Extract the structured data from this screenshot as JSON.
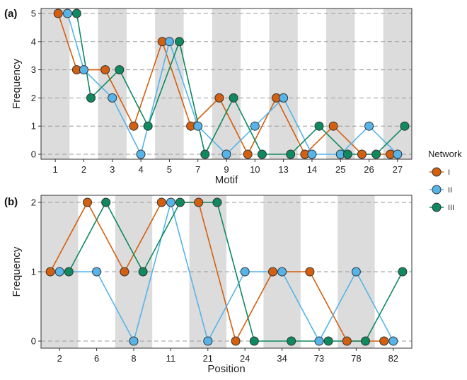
{
  "legend": {
    "title": "Network",
    "items": [
      {
        "label": "I",
        "color": "#D45F0E"
      },
      {
        "label": "II",
        "color": "#56B4E9"
      },
      {
        "label": "III",
        "color": "#0F8A5F"
      }
    ]
  },
  "chart_data": [
    {
      "panel_label": "(a)",
      "type": "line",
      "xlabel": "Motif",
      "ylabel": "Frequency",
      "categories": [
        "1",
        "2",
        "3",
        "4",
        "5",
        "7",
        "9",
        "10",
        "13",
        "14",
        "25",
        "26",
        "27"
      ],
      "ylim": [
        0,
        5
      ],
      "yticks": [
        0,
        1,
        2,
        3,
        4,
        5
      ],
      "grid": "dashed horizontal",
      "band_shading": "alternating grey/white per category",
      "series": [
        {
          "name": "I",
          "color": "#D45F0E",
          "x": [
            0.6,
            1.25,
            2.25,
            3.25,
            4.25,
            5.25,
            6.25,
            7.25,
            8.25,
            9.25,
            10.25,
            11.25,
            12.25
          ],
          "values": [
            5,
            3,
            3,
            1,
            4,
            1,
            2,
            0,
            2,
            0,
            1,
            0,
            0
          ]
        },
        {
          "name": "II",
          "color": "#56B4E9",
          "x": [
            0.93,
            1.5,
            2.5,
            3.5,
            4.5,
            5.5,
            6.5,
            7.5,
            8.5,
            9.5,
            10.5,
            11.5,
            12.5
          ],
          "values": [
            5,
            3,
            2,
            0,
            4,
            1,
            0,
            1,
            2,
            0,
            0,
            1,
            0
          ]
        },
        {
          "name": "III",
          "color": "#0F8A5F",
          "x": [
            1.25,
            1.75,
            2.75,
            3.75,
            4.85,
            5.75,
            6.75,
            7.75,
            8.75,
            9.75,
            10.75,
            11.75,
            12.75
          ],
          "values": [
            5,
            2,
            3,
            1,
            4,
            0,
            2,
            0,
            0,
            1,
            0,
            0,
            1
          ]
        }
      ]
    },
    {
      "panel_label": "(b)",
      "type": "line",
      "xlabel": "Position",
      "ylabel": "Frequency",
      "categories": [
        "2",
        "6",
        "8",
        "11",
        "21",
        "24",
        "34",
        "73",
        "78",
        "82"
      ],
      "ylim": [
        0,
        2
      ],
      "yticks": [
        0,
        1,
        2
      ],
      "grid": "dashed horizontal",
      "band_shading": "alternating grey/white per category",
      "series": [
        {
          "name": "I",
          "color": "#D45F0E",
          "x": [
            0.25,
            1.25,
            2.25,
            3.25,
            4.25,
            5.25,
            6.25,
            7.25,
            8.25,
            9.25
          ],
          "values": [
            1,
            2,
            1,
            2,
            2,
            0,
            1,
            1,
            0,
            0
          ]
        },
        {
          "name": "II",
          "color": "#56B4E9",
          "x": [
            0.5,
            1.5,
            2.5,
            3.5,
            4.5,
            5.5,
            6.5,
            7.5,
            8.5,
            9.5
          ],
          "values": [
            1,
            1,
            0,
            2,
            0,
            1,
            1,
            0,
            1,
            0
          ]
        },
        {
          "name": "III",
          "color": "#0F8A5F",
          "x": [
            0.75,
            1.75,
            2.75,
            3.75,
            4.75,
            5.75,
            6.75,
            7.75,
            8.75,
            9.75
          ],
          "values": [
            1,
            2,
            1,
            2,
            2,
            0,
            0,
            0,
            0,
            1
          ]
        }
      ]
    }
  ]
}
